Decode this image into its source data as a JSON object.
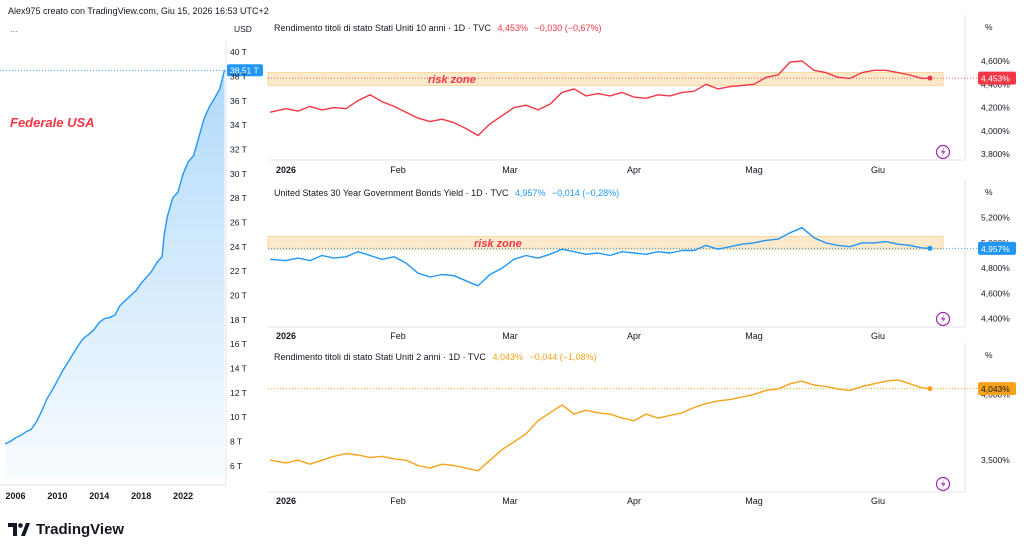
{
  "header": {
    "attribution": "Alex975 creato con TradingView.com, Giu 15, 2026 16:53 UTC+2",
    "menu_dots": "..."
  },
  "brand": {
    "logo_text": "TradingView"
  },
  "colors": {
    "red": "#F23645",
    "blue": "#2196F3",
    "orange": "#F7A21B",
    "zone": "#FCE3BF",
    "grid": "#F0F3FA",
    "text": "#131722"
  },
  "chart_data": [
    {
      "type": "area",
      "id": "federal-debt",
      "annotation": "Federale USA",
      "ylabel": "USD",
      "ylim": [
        5,
        41
      ],
      "xlim": [
        2005,
        2026
      ],
      "last_value_label": "38,51 T",
      "y_ticks": [
        "40 T",
        "38 T",
        "36 T",
        "34 T",
        "32 T",
        "30 T",
        "28 T",
        "26 T",
        "24 T",
        "22 T",
        "20 T",
        "18 T",
        "16 T",
        "14 T",
        "12 T",
        "10 T",
        "8 T",
        "6 T"
      ],
      "x_ticks": [
        [
          "2006",
          2006
        ],
        [
          "2010",
          2010
        ],
        [
          "2014",
          2014
        ],
        [
          "2018",
          2018
        ],
        [
          "2022",
          2022
        ]
      ],
      "x": [
        2005.0,
        2005.5,
        2006.0,
        2006.5,
        2007.0,
        2007.5,
        2008.0,
        2008.5,
        2009.0,
        2009.5,
        2010.0,
        2010.5,
        2011.0,
        2011.5,
        2012.0,
        2012.5,
        2013.0,
        2013.5,
        2014.0,
        2014.5,
        2015.0,
        2015.5,
        2016.0,
        2016.5,
        2017.0,
        2017.5,
        2018.0,
        2018.5,
        2019.0,
        2019.5,
        2020.0,
        2020.2,
        2020.5,
        2021.0,
        2021.5,
        2022.0,
        2022.5,
        2023.0,
        2023.5,
        2024.0,
        2024.5,
        2025.0,
        2025.5,
        2025.95
      ],
      "values": [
        7.8,
        8.0,
        8.3,
        8.5,
        8.8,
        9.0,
        9.6,
        10.5,
        11.5,
        12.2,
        13.0,
        13.8,
        14.5,
        15.2,
        15.9,
        16.5,
        16.8,
        17.2,
        17.8,
        18.1,
        18.2,
        18.4,
        19.2,
        19.6,
        20.0,
        20.4,
        21.0,
        21.5,
        22.0,
        22.7,
        23.2,
        25.0,
        26.5,
        28.0,
        28.5,
        30.0,
        31.0,
        31.5,
        33.0,
        34.5,
        35.5,
        36.2,
        37.0,
        38.51
      ]
    },
    {
      "type": "line",
      "id": "us10y",
      "title": "Rendimento titoli di stato Stati Uniti 10 anni · 1D · TVC",
      "last": "4,453%",
      "change": "−0,030 (−0,67%)",
      "unit": "%",
      "zone_label": "risk zone",
      "zone": [
        4.39,
        4.5
      ],
      "ylim": [
        3.75,
        4.78
      ],
      "y_ticks": [
        [
          "4,600%",
          4.6
        ],
        [
          "4,400%",
          4.4
        ],
        [
          "4,200%",
          4.2
        ],
        [
          "4,000%",
          4.0
        ],
        [
          "3,800%",
          3.8
        ]
      ],
      "last_value": 4.453,
      "x_ticks": [
        [
          "2026",
          2
        ],
        [
          "Feb",
          32
        ],
        [
          "Mar",
          60
        ],
        [
          "Apr",
          91
        ],
        [
          "Mag",
          121
        ],
        [
          "Giu",
          152
        ]
      ],
      "x": [
        0,
        4,
        7,
        10,
        13,
        16,
        19,
        22,
        25,
        28,
        31,
        34,
        37,
        40,
        43,
        46,
        49,
        52,
        55,
        58,
        61,
        64,
        67,
        70,
        73,
        76,
        79,
        82,
        85,
        88,
        91,
        94,
        97,
        100,
        103,
        106,
        109,
        112,
        115,
        118,
        121,
        124,
        127,
        130,
        133,
        136,
        139,
        142,
        145,
        148,
        151,
        154,
        157,
        160,
        163,
        165
      ],
      "values": [
        4.16,
        4.19,
        4.17,
        4.21,
        4.18,
        4.2,
        4.19,
        4.26,
        4.31,
        4.25,
        4.21,
        4.16,
        4.11,
        4.08,
        4.1,
        4.07,
        4.02,
        3.96,
        4.06,
        4.13,
        4.2,
        4.22,
        4.18,
        4.23,
        4.33,
        4.36,
        4.3,
        4.32,
        4.3,
        4.33,
        4.29,
        4.28,
        4.31,
        4.3,
        4.33,
        4.34,
        4.4,
        4.36,
        4.38,
        4.39,
        4.4,
        4.46,
        4.48,
        4.59,
        4.6,
        4.52,
        4.5,
        4.46,
        4.45,
        4.5,
        4.52,
        4.52,
        4.5,
        4.48,
        4.45,
        4.453
      ]
    },
    {
      "type": "line",
      "id": "us30y",
      "title": "United States 30 Year Government Bonds Yield · 1D · TVC",
      "last": "4,957%",
      "change": "−0,014 (−0,28%)",
      "unit": "%",
      "zone_label": "risk zone",
      "zone": [
        4.95,
        5.05
      ],
      "ylim": [
        4.35,
        5.3
      ],
      "y_ticks": [
        [
          "5,200%",
          5.2
        ],
        [
          "5,000%",
          5.0
        ],
        [
          "4,800%",
          4.8
        ],
        [
          "4,600%",
          4.6
        ],
        [
          "4,400%",
          4.4
        ]
      ],
      "last_value": 4.957,
      "x_ticks": [
        [
          "2026",
          2
        ],
        [
          "Feb",
          32
        ],
        [
          "Mar",
          60
        ],
        [
          "Apr",
          91
        ],
        [
          "Mag",
          121
        ],
        [
          "Giu",
          152
        ]
      ],
      "x": [
        0,
        4,
        7,
        10,
        13,
        16,
        19,
        22,
        25,
        28,
        31,
        34,
        37,
        40,
        43,
        46,
        49,
        52,
        55,
        58,
        61,
        64,
        67,
        70,
        73,
        76,
        79,
        82,
        85,
        88,
        91,
        94,
        97,
        100,
        103,
        106,
        109,
        112,
        115,
        118,
        121,
        124,
        127,
        130,
        133,
        136,
        139,
        142,
        145,
        148,
        151,
        154,
        157,
        160,
        163,
        165
      ],
      "values": [
        4.87,
        4.86,
        4.88,
        4.86,
        4.9,
        4.88,
        4.89,
        4.93,
        4.9,
        4.87,
        4.89,
        4.84,
        4.76,
        4.73,
        4.75,
        4.74,
        4.7,
        4.66,
        4.75,
        4.8,
        4.87,
        4.9,
        4.88,
        4.91,
        4.95,
        4.93,
        4.91,
        4.92,
        4.9,
        4.93,
        4.92,
        4.91,
        4.93,
        4.92,
        4.94,
        4.94,
        4.98,
        4.95,
        4.97,
        4.99,
        5.0,
        5.02,
        5.03,
        5.08,
        5.12,
        5.04,
        5.0,
        4.98,
        4.97,
        5.0,
        5.0,
        5.01,
        4.99,
        4.98,
        4.96,
        4.957
      ]
    },
    {
      "type": "line",
      "id": "us2y",
      "title": "Rendimento titoli di stato Stati Uniti 2 anni · 1D · TVC",
      "last": "4,043%",
      "change": "−0,044 (−1,08%)",
      "unit": "%",
      "ylim": [
        3.35,
        4.2
      ],
      "y_ticks": [
        [
          "4,000%",
          4.0
        ],
        [
          "3,500%",
          3.5
        ]
      ],
      "last_value": 4.043,
      "x_ticks": [
        [
          "2026",
          2
        ],
        [
          "Feb",
          32
        ],
        [
          "Mar",
          60
        ],
        [
          "Apr",
          91
        ],
        [
          "Mag",
          121
        ],
        [
          "Giu",
          152
        ]
      ],
      "x": [
        0,
        4,
        7,
        10,
        13,
        16,
        19,
        22,
        25,
        28,
        31,
        34,
        37,
        40,
        43,
        46,
        49,
        52,
        55,
        58,
        61,
        64,
        67,
        70,
        73,
        76,
        79,
        82,
        85,
        88,
        91,
        94,
        97,
        100,
        103,
        106,
        109,
        112,
        115,
        118,
        121,
        124,
        127,
        130,
        133,
        136,
        139,
        142,
        145,
        148,
        151,
        154,
        157,
        160,
        163,
        165
      ],
      "values": [
        3.5,
        3.48,
        3.5,
        3.47,
        3.5,
        3.53,
        3.55,
        3.54,
        3.52,
        3.53,
        3.51,
        3.5,
        3.46,
        3.44,
        3.47,
        3.46,
        3.44,
        3.42,
        3.5,
        3.58,
        3.64,
        3.7,
        3.8,
        3.86,
        3.92,
        3.85,
        3.88,
        3.86,
        3.85,
        3.82,
        3.8,
        3.85,
        3.82,
        3.84,
        3.86,
        3.9,
        3.93,
        3.95,
        3.96,
        3.98,
        4.0,
        4.03,
        4.04,
        4.08,
        4.1,
        4.07,
        4.06,
        4.04,
        4.03,
        4.06,
        4.08,
        4.1,
        4.11,
        4.08,
        4.05,
        4.043
      ]
    }
  ]
}
